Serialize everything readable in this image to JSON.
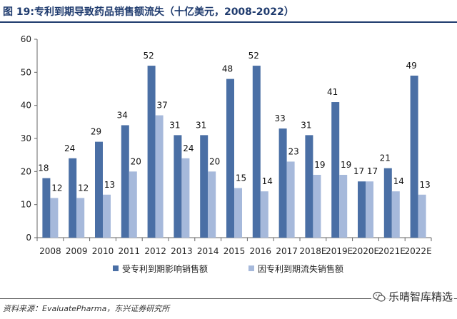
{
  "header": {
    "title": "图 19:专利到期导致药品销售额流失（十亿美元，2008-2022）"
  },
  "chart_data": {
    "type": "bar",
    "title": "图 19:专利到期导致药品销售额流失（十亿美元，2008-2022）",
    "categories": [
      "2008",
      "2009",
      "2010",
      "2011",
      "2012",
      "2013",
      "2014",
      "2015",
      "2016",
      "2017",
      "2018E",
      "2019E",
      "2020E",
      "2021E",
      "2022E"
    ],
    "series": [
      {
        "name": "受专利到期影响销售额",
        "color": "#4a6fa5",
        "values": [
          18,
          24,
          29,
          34,
          52,
          31,
          31,
          48,
          52,
          33,
          31,
          41,
          17,
          21,
          49
        ]
      },
      {
        "name": "因专利到期流失销售额",
        "color": "#a6b9db",
        "values": [
          12,
          12,
          13,
          20,
          37,
          24,
          20,
          15,
          14,
          23,
          19,
          19,
          17,
          14,
          13
        ]
      }
    ],
    "ylim": [
      0,
      60
    ],
    "yticks": [
      0,
      10,
      20,
      30,
      40,
      50,
      60
    ],
    "xlabel": "",
    "ylabel": "",
    "grid": false,
    "legend_position": "bottom"
  },
  "footer": {
    "source": "资料来源：EvaluatePharma，东兴证券研究所",
    "watermark": "乐晴智库精选"
  }
}
